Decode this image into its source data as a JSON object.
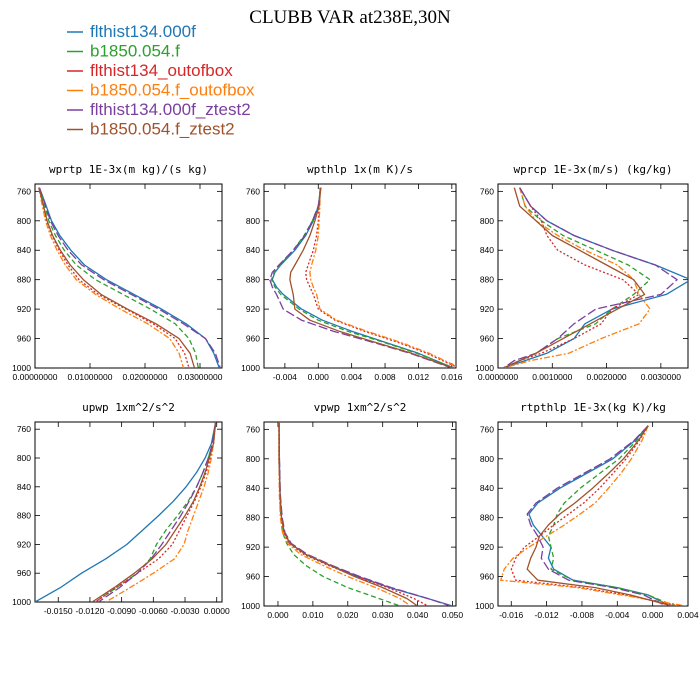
{
  "figure": {
    "title": "CLUBB VAR at238E,30N"
  },
  "legend": [
    {
      "label": "flthist134.000f",
      "color": "#1f77b4",
      "dash": "solid"
    },
    {
      "label": "b1850.054.f",
      "color": "#2ca02c",
      "dash": "dash"
    },
    {
      "label": "flthist134_outofbox",
      "color": "#d62728",
      "dash": "dot"
    },
    {
      "label": "b1850.054.f_outofbox",
      "color": "#ff7f0e",
      "dash": "dashdot"
    },
    {
      "label": "flthist134.000f_ztest2",
      "color": "#7b3fa0",
      "dash": "longdash"
    },
    {
      "label": "b1850.054.f_ztest2",
      "color": "#a0522d",
      "dash": "solid"
    }
  ],
  "chart_data": [
    {
      "type": "line",
      "title": "wprtp  1E-3x(m kg)/(s kg)",
      "xlim": [
        0,
        0.034
      ],
      "ylim": [
        1000,
        750
      ],
      "xticks": [
        0,
        0.01,
        0.02,
        0.03
      ],
      "xtick_labels": [
        "0.00000000",
        "0.01000000",
        "0.02000000",
        "0.03000000"
      ],
      "yticks": [
        760,
        800,
        840,
        880,
        920,
        960,
        1000
      ],
      "y": [
        755,
        775,
        800,
        820,
        840,
        860,
        880,
        900,
        920,
        940,
        960,
        980,
        1000
      ],
      "series": [
        {
          "x": [
            0.0008,
            0.0018,
            0.003,
            0.0045,
            0.0065,
            0.009,
            0.013,
            0.018,
            0.023,
            0.0275,
            0.031,
            0.0325,
            0.0335
          ]
        },
        {
          "x": [
            0.0008,
            0.0016,
            0.0025,
            0.0037,
            0.0053,
            0.0075,
            0.011,
            0.016,
            0.021,
            0.0255,
            0.028,
            0.0292,
            0.0297
          ]
        },
        {
          "x": [
            0.0007,
            0.0013,
            0.0021,
            0.0031,
            0.0044,
            0.006,
            0.008,
            0.0115,
            0.0165,
            0.0215,
            0.0255,
            0.0272,
            0.028
          ]
        },
        {
          "x": [
            0.0007,
            0.0012,
            0.0019,
            0.0028,
            0.004,
            0.0055,
            0.0075,
            0.011,
            0.0155,
            0.0205,
            0.0245,
            0.0262,
            0.027
          ]
        },
        {
          "x": [
            0.0008,
            0.0017,
            0.0028,
            0.0042,
            0.006,
            0.0085,
            0.0125,
            0.0175,
            0.0225,
            0.027,
            0.031,
            0.0328,
            0.0337
          ]
        },
        {
          "x": [
            0.0007,
            0.0014,
            0.0022,
            0.0032,
            0.0046,
            0.0064,
            0.0088,
            0.012,
            0.0168,
            0.022,
            0.0262,
            0.0282,
            0.029
          ]
        }
      ]
    },
    {
      "type": "line",
      "title": "wpthlp  1x(m K)/s",
      "xlim": [
        -0.0065,
        0.0165
      ],
      "ylim": [
        1000,
        750
      ],
      "xticks": [
        -0.004,
        0,
        0.004,
        0.008,
        0.012,
        0.016
      ],
      "xtick_labels": [
        "-0.004",
        "0.000",
        "0.004",
        "0.008",
        "0.012",
        "0.016"
      ],
      "yticks": [
        760,
        800,
        840,
        880,
        920,
        960,
        1000
      ],
      "y": [
        755,
        780,
        800,
        820,
        840,
        860,
        870,
        880,
        890,
        900,
        920,
        935,
        950,
        965,
        980,
        1000
      ],
      "series": [
        {
          "x": [
            0.0003,
            0,
            -0.0006,
            -0.0015,
            -0.0028,
            -0.0045,
            -0.0052,
            -0.0055,
            -0.005,
            -0.0042,
            -0.002,
            0.0005,
            0.004,
            0.008,
            0.012,
            0.0162
          ]
        },
        {
          "x": [
            0.0003,
            0,
            -0.0007,
            -0.0017,
            -0.003,
            -0.0046,
            -0.0053,
            -0.0056,
            -0.0052,
            -0.0045,
            -0.0023,
            0,
            0.0035,
            0.0078,
            0.0118,
            0.0163
          ]
        },
        {
          "x": [
            0.0002,
            0.0001,
            0,
            -0.0002,
            -0.0006,
            -0.0012,
            -0.0015,
            -0.0014,
            -0.001,
            -0.0006,
            0,
            0.002,
            0.0055,
            0.0095,
            0.013,
            0.0168
          ]
        },
        {
          "x": [
            0.0002,
            0.0002,
            0.0001,
            0,
            -0.0003,
            -0.0008,
            -0.001,
            -0.0009,
            -0.0006,
            -0.0002,
            0.0002,
            0.0022,
            0.0058,
            0.0098,
            0.0133,
            0.017
          ]
        },
        {
          "x": [
            0.0003,
            0,
            -0.0007,
            -0.0016,
            -0.003,
            -0.0047,
            -0.0055,
            -0.0058,
            -0.0055,
            -0.005,
            -0.0042,
            -0.002,
            0.0018,
            0.0065,
            0.011,
            0.016
          ]
        },
        {
          "x": [
            0.0003,
            0.0001,
            -0.0004,
            -0.001,
            -0.0018,
            -0.0028,
            -0.0033,
            -0.0034,
            -0.0032,
            -0.003,
            -0.0028,
            -0.001,
            0.0025,
            0.0068,
            0.0112,
            0.0161
          ]
        }
      ]
    },
    {
      "type": "line",
      "title": "wprcp  1E-3x(m/s) (kg/kg)",
      "xlim": [
        0,
        0.0035
      ],
      "ylim": [
        1000,
        750
      ],
      "xticks": [
        0,
        0.001,
        0.002,
        0.003
      ],
      "xtick_labels": [
        "0.0000000",
        "0.0010000",
        "0.0020000",
        "0.0030000"
      ],
      "yticks": [
        760,
        800,
        840,
        880,
        920,
        960,
        1000
      ],
      "y": [
        755,
        780,
        800,
        820,
        840,
        860,
        880,
        900,
        920,
        940,
        960,
        980,
        990,
        1000
      ],
      "series": [
        {
          "x": [
            0.0004,
            0.0006,
            0.0009,
            0.0014,
            0.0021,
            0.0029,
            0.00355,
            0.0031,
            0.0021,
            0.0016,
            0.0014,
            0.0009,
            0.0005,
            0.0001
          ]
        },
        {
          "x": [
            0.0004,
            0.0005,
            0.0008,
            0.0012,
            0.0018,
            0.0024,
            0.0028,
            0.0025,
            0.0021,
            0.0018,
            0.0011,
            0.0007,
            0.0004,
            0.0001
          ]
        },
        {
          "x": [
            0.0004,
            0.0006,
            0.0008,
            0.0009,
            0.0011,
            0.0016,
            0.0023,
            0.0026,
            0.0021,
            0.0019,
            0.0014,
            0.0008,
            0.0004,
            0.0001
          ]
        },
        {
          "x": [
            0.0004,
            0.0005,
            0.0007,
            0.0011,
            0.0016,
            0.0022,
            0.0025,
            0.0026,
            0.0028,
            0.0026,
            0.0019,
            0.0013,
            0.0006,
            0.0001
          ]
        },
        {
          "x": [
            0.0004,
            0.0006,
            0.0009,
            0.0014,
            0.0021,
            0.0029,
            0.0033,
            0.003,
            0.0018,
            0.0014,
            0.0011,
            0.0007,
            0.0003,
            0.0001
          ]
        },
        {
          "x": [
            0.0003,
            0.0004,
            0.0007,
            0.001,
            0.0015,
            0.002,
            0.0025,
            0.0027,
            0.0022,
            0.0017,
            0.0012,
            0.0007,
            0.0004,
            0.0001
          ]
        }
      ]
    },
    {
      "type": "line",
      "title": "upwp  1xm^2/s^2",
      "xlim": [
        -0.0172,
        0.0005
      ],
      "ylim": [
        1000,
        750
      ],
      "xticks": [
        -0.015,
        -0.012,
        -0.009,
        -0.006,
        -0.003,
        0
      ],
      "xtick_labels": [
        "-0.0150",
        "-0.0120",
        "-0.0090",
        "-0.0060",
        "-0.0030",
        "0.0000"
      ],
      "yticks": [
        760,
        800,
        840,
        880,
        920,
        960,
        1000
      ],
      "y": [
        750,
        780,
        800,
        820,
        840,
        860,
        880,
        900,
        920,
        940,
        960,
        980,
        1000
      ],
      "series": [
        {
          "x": [
            -0.0001,
            -0.0005,
            -0.0011,
            -0.0019,
            -0.0029,
            -0.0041,
            -0.0055,
            -0.007,
            -0.0085,
            -0.0105,
            -0.0128,
            -0.0148,
            -0.0172
          ]
        },
        {
          "x": [
            -0.0001,
            -0.0004,
            -0.0008,
            -0.0013,
            -0.0019,
            -0.0027,
            -0.0037,
            -0.0048,
            -0.0057,
            -0.0063,
            -0.0075,
            -0.0095,
            -0.0115
          ]
        },
        {
          "x": [
            -0.0001,
            -0.0003,
            -0.0006,
            -0.001,
            -0.0015,
            -0.0021,
            -0.0028,
            -0.0035,
            -0.0042,
            -0.0055,
            -0.0075,
            -0.0095,
            -0.0115
          ]
        },
        {
          "x": [
            -0.0001,
            -0.0003,
            -0.0005,
            -0.0008,
            -0.0012,
            -0.0017,
            -0.0022,
            -0.0027,
            -0.0031,
            -0.004,
            -0.006,
            -0.0082,
            -0.0105
          ]
        },
        {
          "x": [
            -0.0001,
            -0.0004,
            -0.0008,
            -0.0013,
            -0.0019,
            -0.0026,
            -0.0034,
            -0.0043,
            -0.0052,
            -0.0062,
            -0.0075,
            -0.0092,
            -0.0112
          ]
        },
        {
          "x": [
            -0.0001,
            -0.0003,
            -0.0007,
            -0.0011,
            -0.0016,
            -0.0022,
            -0.003,
            -0.0039,
            -0.0048,
            -0.0061,
            -0.0078,
            -0.0097,
            -0.0118
          ]
        }
      ]
    },
    {
      "type": "line",
      "title": "vpwp  1xm^2/s^2",
      "xlim": [
        -0.004,
        0.051
      ],
      "ylim": [
        1000,
        750
      ],
      "xticks": [
        0,
        0.01,
        0.02,
        0.03,
        0.04,
        0.05
      ],
      "xtick_labels": [
        "0.000",
        "0.010",
        "0.020",
        "0.030",
        "0.040",
        "0.050"
      ],
      "yticks": [
        760,
        800,
        840,
        880,
        920,
        960,
        1000
      ],
      "y": [
        750,
        800,
        850,
        880,
        900,
        915,
        930,
        945,
        960,
        975,
        990,
        1000
      ],
      "series": [
        {
          "x": [
            0.0003,
            0.0004,
            0.0006,
            0.001,
            0.0018,
            0.0035,
            0.008,
            0.015,
            0.023,
            0.032,
            0.043,
            0.05
          ]
        },
        {
          "x": [
            0.0003,
            0.0004,
            0.0005,
            0.0008,
            0.0013,
            0.0025,
            0.0045,
            0.008,
            0.013,
            0.02,
            0.029,
            0.035
          ]
        },
        {
          "x": [
            0.0003,
            0.0003,
            0.0005,
            0.0009,
            0.0016,
            0.0032,
            0.0075,
            0.0145,
            0.0225,
            0.0315,
            0.039,
            0.043
          ]
        },
        {
          "x": [
            0.0003,
            0.0003,
            0.0004,
            0.0007,
            0.0013,
            0.0028,
            0.0065,
            0.013,
            0.02,
            0.028,
            0.035,
            0.038
          ]
        },
        {
          "x": [
            0.0003,
            0.0004,
            0.0007,
            0.0012,
            0.002,
            0.0038,
            0.0085,
            0.0155,
            0.0235,
            0.0325,
            0.043,
            0.0495
          ]
        },
        {
          "x": [
            0.0003,
            0.0003,
            0.0006,
            0.001,
            0.0018,
            0.0034,
            0.008,
            0.015,
            0.022,
            0.03,
            0.037,
            0.04
          ]
        }
      ]
    },
    {
      "type": "line",
      "title": "rtpthlp  1E-3x(kg K)/kg",
      "xlim": [
        -0.0175,
        0.004
      ],
      "ylim": [
        1000,
        750
      ],
      "xticks": [
        -0.016,
        -0.012,
        -0.008,
        -0.004,
        0,
        0.004
      ],
      "xtick_labels": [
        "-0.016",
        "-0.012",
        "-0.008",
        "-0.004",
        "0.000",
        "0.004"
      ],
      "yticks": [
        760,
        800,
        840,
        880,
        920,
        960,
        1000
      ],
      "y": [
        755,
        775,
        800,
        820,
        840,
        860,
        875,
        890,
        905,
        920,
        935,
        950,
        965,
        975,
        985,
        1000
      ],
      "series": [
        {
          "x": [
            -0.0005,
            -0.002,
            -0.0045,
            -0.0075,
            -0.0105,
            -0.013,
            -0.014,
            -0.0135,
            -0.0125,
            -0.0115,
            -0.0118,
            -0.0112,
            -0.009,
            -0.004,
            -0.0005,
            0.002
          ]
        },
        {
          "x": [
            -0.0005,
            -0.0018,
            -0.0038,
            -0.006,
            -0.0082,
            -0.01,
            -0.0108,
            -0.0112,
            -0.0118,
            -0.0115,
            -0.0112,
            -0.0115,
            -0.009,
            -0.004,
            -0.0005,
            0.0025
          ]
        },
        {
          "x": [
            -0.0005,
            -0.0015,
            -0.003,
            -0.0045,
            -0.006,
            -0.0078,
            -0.0095,
            -0.0112,
            -0.0128,
            -0.0145,
            -0.0155,
            -0.016,
            -0.0155,
            -0.008,
            -0.003,
            0.003
          ]
        },
        {
          "x": [
            -0.0005,
            -0.0012,
            -0.0024,
            -0.0036,
            -0.005,
            -0.0065,
            -0.0082,
            -0.01,
            -0.012,
            -0.014,
            -0.0158,
            -0.0168,
            -0.0172,
            -0.0085,
            -0.0035,
            0.0038
          ]
        },
        {
          "x": [
            -0.0005,
            -0.0021,
            -0.0048,
            -0.0078,
            -0.0108,
            -0.0132,
            -0.0142,
            -0.0138,
            -0.013,
            -0.0124,
            -0.0126,
            -0.0118,
            -0.0095,
            -0.0045,
            -0.001,
            0.0015
          ]
        },
        {
          "x": [
            -0.0005,
            -0.0016,
            -0.0033,
            -0.005,
            -0.0068,
            -0.0088,
            -0.0105,
            -0.0118,
            -0.0128,
            -0.0132,
            -0.0138,
            -0.0142,
            -0.013,
            -0.0065,
            -0.0025,
            0.0022
          ]
        }
      ]
    }
  ]
}
